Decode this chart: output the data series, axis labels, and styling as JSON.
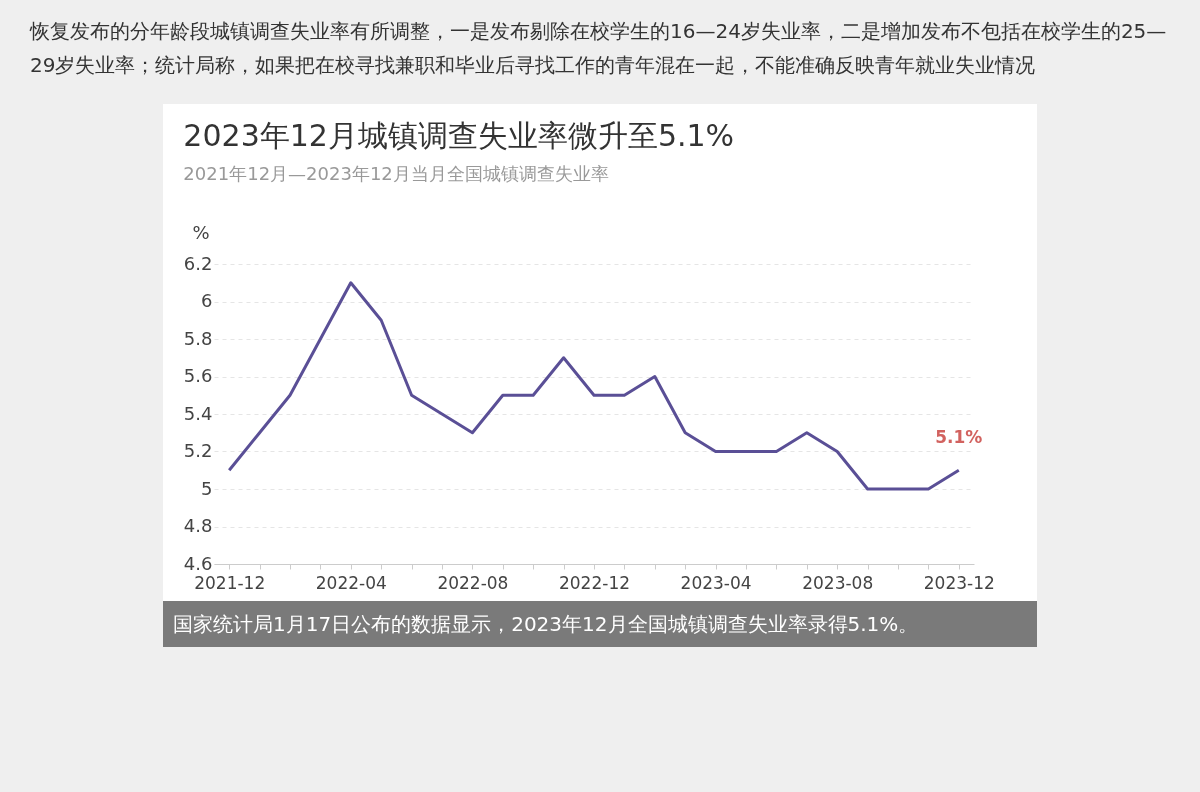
{
  "chart_data": {
    "type": "line",
    "title": "2023年12月城镇调查失业率微升至5.1%",
    "subtitle": "2021年12月—2023年12月当月全国城镇调查失业率",
    "ylabel": "%",
    "categories": [
      "2021-12",
      null,
      null,
      null,
      "2022-04",
      null,
      null,
      null,
      "2022-08",
      null,
      null,
      null,
      "2022-12",
      null,
      null,
      null,
      "2023-04",
      null,
      null,
      null,
      "2023-08",
      null,
      null,
      null,
      "2023-12"
    ],
    "series": [
      {
        "color": "#5a4f96",
        "values": [
          5.1,
          5.3,
          5.5,
          5.8,
          6.1,
          5.9,
          5.5,
          5.4,
          5.3,
          5.5,
          5.5,
          5.7,
          5.5,
          5.5,
          5.6,
          5.3,
          5.2,
          5.2,
          5.2,
          5.3,
          5.2,
          5.0,
          5.0,
          5.0,
          5.1
        ],
        "value_labels": [
          null,
          null,
          null,
          null,
          null,
          null,
          null,
          null,
          null,
          null,
          null,
          null,
          null,
          null,
          null,
          null,
          null,
          null,
          null,
          null,
          null,
          null,
          null,
          null,
          "5.1%"
        ]
      }
    ],
    "ylim": [
      4.6,
      6.2
    ],
    "yticks": [
      4.6,
      4.8,
      5,
      5.2,
      5.4,
      5.6,
      5.8,
      6,
      6.2
    ],
    "grid": "y",
    "legend": false,
    "marker": "none",
    "line_style": "solid",
    "annotations": [
      "恢复发布的分年龄段城镇调查失业率有所调整，一是发布剔除在校学生的16—24岁失业率，二是增加发布不包括在校学生的25—29岁失业率；统计局称，如果把在校寻找兼职和毕业后寻找工作的青年混在一起，不能准确反映青年就业失业情况",
      "国家统计局1月17日公布的数据显示，2023年12月全国城镇调查失业率录得5.1%。"
    ]
  }
}
